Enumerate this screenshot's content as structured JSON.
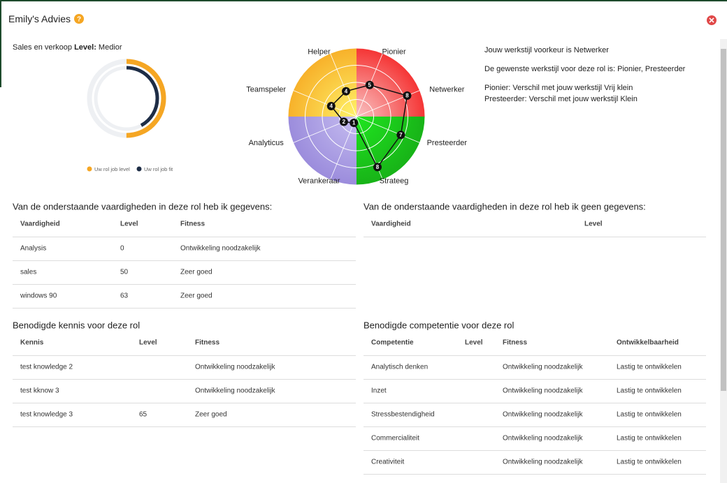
{
  "header": {
    "title": "Emily's Advies"
  },
  "role": {
    "name": "Sales en verkoop",
    "level_label": "Level:",
    "level": "Medior"
  },
  "chart_data": [
    {
      "type": "ring",
      "vlim": [
        0,
        100
      ],
      "series": [
        {
          "name": "Uw rol job level",
          "color": "#f5a623",
          "values": [
            50
          ]
        },
        {
          "name": "Uw rol job fit",
          "color": "#1e2d46",
          "values": [
            42
          ]
        }
      ]
    },
    {
      "type": "radar",
      "rlim": [
        0,
        10
      ],
      "categories": [
        "Pionier",
        "Netwerker",
        "Presteerder",
        "Strateeg",
        "Verankeraar",
        "Analyticus",
        "Teamspeler",
        "Helper"
      ],
      "values": [
        5,
        8,
        7,
        8,
        1,
        2,
        4,
        4
      ]
    }
  ],
  "advice": {
    "lines": [
      "Jouw werkstijl voorkeur is Netwerker",
      "De gewenste werkstijl voor deze rol is: Pionier, Presteerder",
      "Pionier: Verschil met jouw werkstijl Vrij klein",
      "Presteerder: Verschil met jouw werkstijl Klein"
    ]
  },
  "skills_with_data": {
    "title": "Van de onderstaande vaardigheden in deze rol heb ik gegevens:",
    "columns": [
      "Vaardigheid",
      "Level",
      "Fitness"
    ],
    "rows": [
      [
        "Analysis",
        0,
        "Ontwikkeling noodzakelijk"
      ],
      [
        "sales",
        50,
        "Zeer goed"
      ],
      [
        "windows 90",
        63,
        "Zeer goed"
      ]
    ]
  },
  "skills_without_data": {
    "title": "Van de onderstaande vaardigheden in deze rol heb ik geen gegevens:",
    "columns": [
      "Vaardigheid",
      "Level"
    ],
    "rows": []
  },
  "knowledge": {
    "title": "Benodigde kennis voor deze rol",
    "columns": [
      "Kennis",
      "Level",
      "Fitness"
    ],
    "rows": [
      [
        "test knowledge 2",
        null,
        "Ontwikkeling noodzakelijk"
      ],
      [
        "test kknow 3",
        null,
        "Ontwikkeling noodzakelijk"
      ],
      [
        "test knowledge 3",
        65,
        "Zeer goed"
      ]
    ]
  },
  "competencies": {
    "title": "Benodigde competentie voor deze rol",
    "columns": [
      "Competentie",
      "Level",
      "Fitness",
      "Ontwikkelbaarheid"
    ],
    "rows": [
      [
        "Analytisch denken",
        null,
        "Ontwikkeling noodzakelijk",
        "Lastig te ontwikkelen"
      ],
      [
        "Inzet",
        null,
        "Ontwikkeling noodzakelijk",
        "Lastig te ontwikkelen"
      ],
      [
        "Stressbestendigheid",
        null,
        "Ontwikkeling noodzakelijk",
        "Lastig te ontwikkelen"
      ],
      [
        "Commercialiteit",
        null,
        "Ontwikkeling noodzakelijk",
        "Lastig te ontwikkelen"
      ],
      [
        "Creativiteit",
        null,
        "Ontwikkeling noodzakelijk",
        "Lastig te ontwikkelen"
      ]
    ]
  }
}
